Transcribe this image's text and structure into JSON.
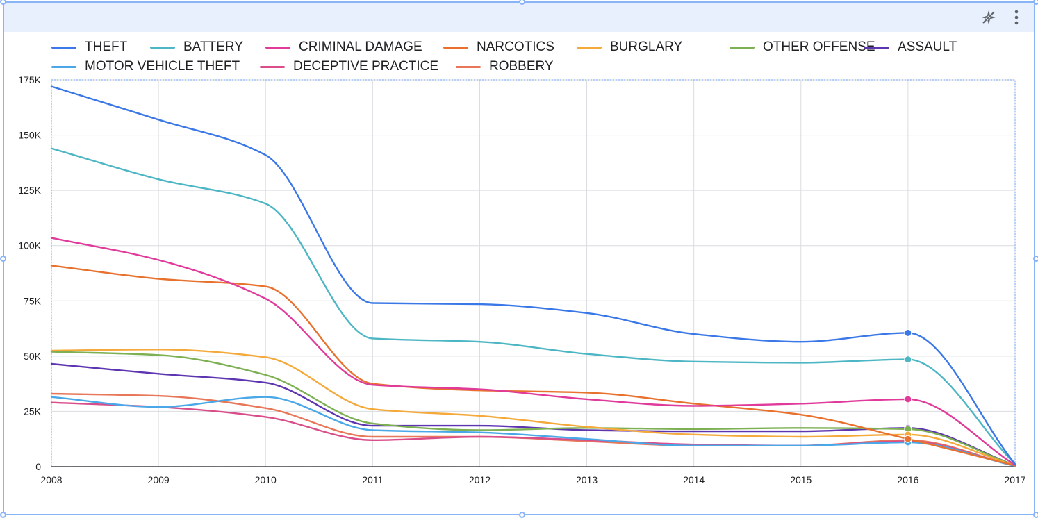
{
  "toolbar": {
    "ai_icon": "sparkle-off-icon",
    "more_icon": "more-vert-icon"
  },
  "chart_data": {
    "type": "line",
    "x": [
      "2008",
      "2009",
      "2010",
      "2011",
      "2012",
      "2013",
      "2014",
      "2015",
      "2016",
      "2017"
    ],
    "ylim": [
      0,
      175000
    ],
    "yticks": [
      0,
      25000,
      50000,
      75000,
      100000,
      125000,
      150000,
      175000
    ],
    "ytick_labels": [
      "0",
      "25K",
      "50K",
      "75K",
      "100K",
      "125K",
      "150K",
      "175K"
    ],
    "xlabel": "",
    "ylabel": "",
    "grid": true,
    "legend_position": "top",
    "series": [
      {
        "name": "THEFT",
        "color": "#3b78e7",
        "values": [
          172000,
          157000,
          141000,
          74000,
          73500,
          69500,
          60000,
          56500,
          60500,
          1200
        ]
      },
      {
        "name": "BATTERY",
        "color": "#4db6c4",
        "values": [
          144000,
          130000,
          119000,
          58000,
          56500,
          51000,
          47500,
          47000,
          48500,
          1200
        ]
      },
      {
        "name": "CRIMINAL DAMAGE",
        "color": "#e03a9a",
        "values": [
          103500,
          93500,
          76000,
          37000,
          35000,
          30500,
          27500,
          28500,
          30500,
          800
        ]
      },
      {
        "name": "NARCOTICS",
        "color": "#e8712e",
        "values": [
          91000,
          85000,
          81500,
          37500,
          34500,
          33500,
          28500,
          23500,
          12500,
          500
        ]
      },
      {
        "name": "BURGLARY",
        "color": "#f4a93a",
        "values": [
          52500,
          53000,
          49500,
          26000,
          23000,
          18000,
          14500,
          13500,
          14500,
          500
        ]
      },
      {
        "name": "OTHER OFFENSE",
        "color": "#7cb053",
        "values": [
          52000,
          50500,
          41500,
          19500,
          16500,
          17500,
          17000,
          17500,
          17000,
          600
        ]
      },
      {
        "name": "ASSAULT",
        "color": "#5e35b1",
        "values": [
          46500,
          42000,
          38000,
          18500,
          18500,
          16500,
          16000,
          16000,
          17500,
          600
        ]
      },
      {
        "name": "MOTOR VEHICLE THEFT",
        "color": "#4aa8e8",
        "values": [
          31500,
          27000,
          31500,
          16500,
          15500,
          12500,
          9500,
          9500,
          11000,
          300
        ]
      },
      {
        "name": "DECEPTIVE PRACTICE",
        "color": "#d94d8a",
        "values": [
          29000,
          27000,
          22500,
          12000,
          13500,
          12000,
          10000,
          9500,
          11500,
          300
        ]
      },
      {
        "name": "ROBBERY",
        "color": "#e8775a",
        "values": [
          33000,
          32000,
          26500,
          13500,
          13500,
          11500,
          9500,
          9500,
          12000,
          300
        ]
      }
    ]
  }
}
